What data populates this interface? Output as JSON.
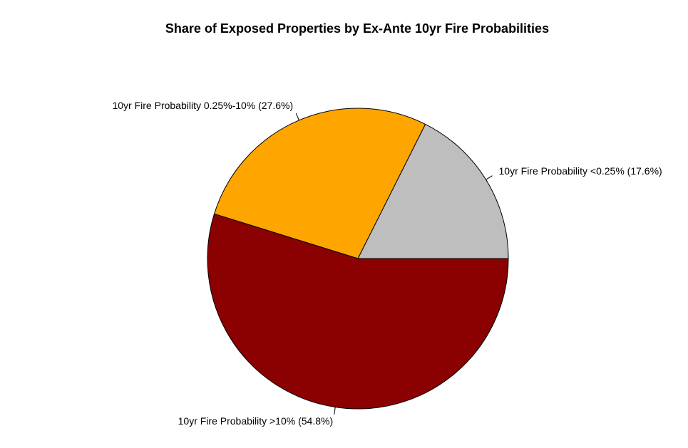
{
  "chart_data": {
    "type": "pie",
    "title": "Share of Exposed Properties by Ex-Ante 10yr Fire Probabilities",
    "categories": [
      "10yr Fire Probability <0.25% (17.6%)",
      "10yr Fire Probability 0.25%-10% (27.6%)",
      "10yr Fire Probability >10% (54.8%)"
    ],
    "values": [
      17.6,
      27.6,
      54.8
    ],
    "colors": [
      "#bebebe",
      "#ffa500",
      "#8b0000"
    ]
  }
}
